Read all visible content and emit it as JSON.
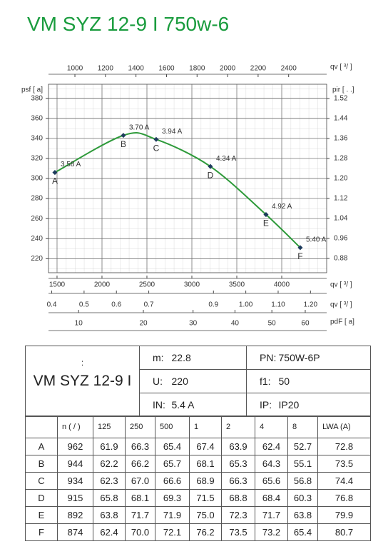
{
  "chart_data": {
    "type": "line",
    "title": "VM SYZ 12-9 I 750w-6",
    "color": "#2e9a3a",
    "x": [
      1476,
      2238,
      2603,
      3206,
      3825,
      4206
    ],
    "values": [
      306,
      343,
      339,
      312,
      264,
      231
    ],
    "point_labels": [
      "A",
      "B",
      "C",
      "D",
      "E",
      "F"
    ],
    "current_labels": [
      "3.58 A",
      "3.70 A",
      "3.94 A",
      "4.34 A",
      "4.92 A",
      "5.40 A"
    ],
    "xlim": [
      1405,
      4500
    ],
    "xticks": [
      1500,
      2000,
      2500,
      3000,
      3500,
      4000
    ],
    "xlabel": "qv [ ³/ ]",
    "ylim": [
      206,
      394
    ],
    "yticks": [
      220,
      240,
      260,
      280,
      300,
      320,
      340,
      360,
      380
    ],
    "ylabel": "psf [ a]",
    "y2lim": [
      0.823,
      1.577
    ],
    "y2ticks": [
      0.88,
      0.96,
      1.04,
      1.12,
      {
        "value": 1.2,
        "label": "1.20"
      },
      1.28,
      1.36,
      1.44,
      1.52
    ],
    "y2label": "pir [ . .]",
    "x2lim": [
      827,
      2649
    ],
    "x2ticks": [
      1000,
      1200,
      1400,
      1600,
      1800,
      2000,
      2200,
      2400
    ],
    "x2label": "qv [ ³/ ]",
    "x3lim": [
      0.39,
      1.25
    ],
    "x3ticks": [
      0.4,
      0.5,
      0.6,
      0.7,
      0.9,
      {
        "value": 1,
        "label": "1.00"
      },
      {
        "value": 1.1,
        "label": "1.10"
      },
      {
        "value": 1.2,
        "label": "1.20"
      }
    ],
    "x3label": "qv [ ³/ ]",
    "x4lim": [
      6.52,
      66.9
    ],
    "x4scale": "sqrt",
    "x4ticks": [
      10,
      20,
      30,
      40,
      50,
      60
    ],
    "x4label": "pdF [ a]",
    "grid": true
  },
  "spec": {
    "model": "VM SYZ 12-9 I",
    "mark": ":",
    "rows": [
      [
        "m:",
        "22.8",
        "PN:",
        "750W-6P"
      ],
      [
        "U:",
        "220",
        "f1:",
        "50"
      ],
      [
        "IN:",
        "5.4  A",
        "IP:",
        "IP20"
      ]
    ]
  },
  "table": {
    "columns": [
      "n ( / )",
      "125",
      "250",
      "500",
      "1",
      "2",
      "4",
      "8",
      "LWA     (A)"
    ],
    "rows": [
      [
        "A",
        "962",
        "61.9",
        "66.3",
        "65.4",
        "67.4",
        "63.9",
        "62.4",
        "52.7",
        "72.8"
      ],
      [
        "B",
        "944",
        "62.2",
        "66.2",
        "65.7",
        "68.1",
        "65.3",
        "64.3",
        "55.1",
        "73.5"
      ],
      [
        "C",
        "934",
        "62.3",
        "67.0",
        "66.6",
        "68.9",
        "66.3",
        "65.6",
        "56.8",
        "74.4"
      ],
      [
        "D",
        "915",
        "65.8",
        "68.1",
        "69.3",
        "71.5",
        "68.8",
        "68.4",
        "60.3",
        "76.8"
      ],
      [
        "E",
        "892",
        "63.8",
        "71.7",
        "71.9",
        "75.0",
        "72.3",
        "71.7",
        "63.8",
        "79.9"
      ],
      [
        "F",
        "874",
        "62.4",
        "70.0",
        "72.1",
        "76.2",
        "73.5",
        "73.2",
        "65.4",
        "80.7"
      ]
    ]
  }
}
